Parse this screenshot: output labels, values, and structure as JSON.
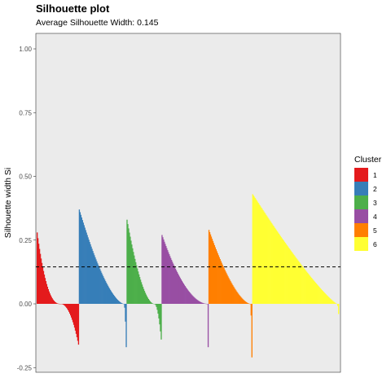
{
  "chart_data": {
    "type": "bar",
    "title": "Silhouette plot",
    "subtitle": "Average Silhouette Width: 0.145",
    "xlabel": "",
    "ylabel": "Silhouette width Si",
    "ylim": [
      -0.25,
      1.0
    ],
    "yticks": [
      "1.00",
      "0.75",
      "0.50",
      "0.25",
      "0.00",
      "-0.25"
    ],
    "yticks_values": [
      1.0,
      0.75,
      0.5,
      0.25,
      0.0,
      -0.25
    ],
    "average_silhouette_width": 0.145,
    "grid": false,
    "legend_title": "Cluster",
    "legend_position": "right",
    "series": [
      {
        "name": "1",
        "color": "#E41A1C",
        "count": 53,
        "max": 0.28,
        "min": -0.16,
        "zero_fraction": 0.56,
        "shape": 2.4
      },
      {
        "name": "2",
        "color": "#377EB8",
        "count": 60,
        "max": 0.37,
        "min": -0.17,
        "zero_fraction": 0.95,
        "shape": 1.6
      },
      {
        "name": "3",
        "color": "#4DAF4A",
        "count": 44,
        "max": 0.33,
        "min": -0.14,
        "zero_fraction": 0.8,
        "shape": 1.8
      },
      {
        "name": "4",
        "color": "#984EA3",
        "count": 59,
        "max": 0.27,
        "min": -0.17,
        "zero_fraction": 0.98,
        "shape": 1.9
      },
      {
        "name": "5",
        "color": "#FF7F00",
        "count": 55,
        "max": 0.29,
        "min": -0.21,
        "zero_fraction": 0.96,
        "shape": 1.6
      },
      {
        "name": "6",
        "color": "#FFFF33",
        "count": 109,
        "max": 0.43,
        "min": -0.04,
        "zero_fraction": 0.98,
        "shape": 1.2
      }
    ]
  }
}
